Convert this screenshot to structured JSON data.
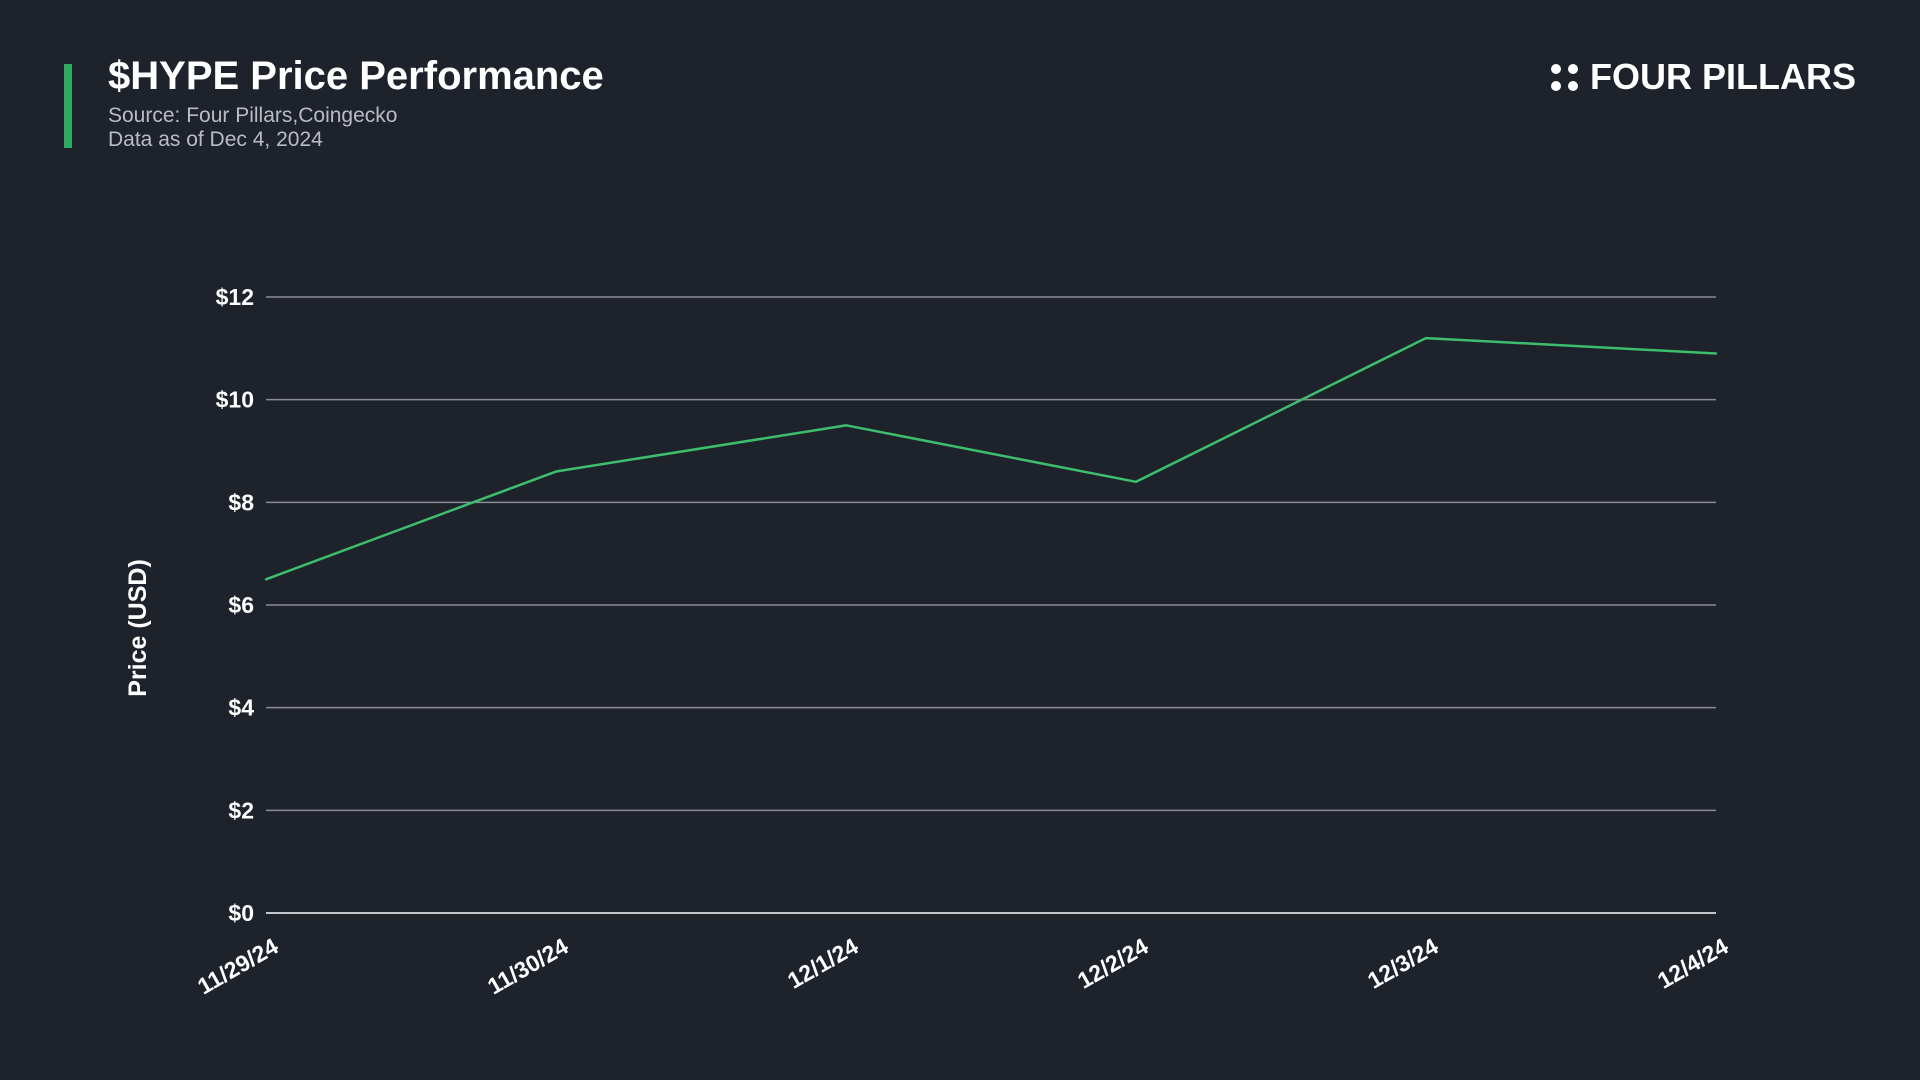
{
  "header": {
    "title": "$HYPE Price Performance",
    "source": "Source: Four Pillars,Coingecko",
    "as_of": "Data as of Dec 4, 2024"
  },
  "brand": {
    "name": "FOUR PILLARS",
    "icon": "four-dots-icon"
  },
  "colors": {
    "background": "#1e222b",
    "accent": "#2fa862",
    "line": "#3dbe6c",
    "grid": "#8a8d94",
    "subtitle": "#b9bcc3"
  },
  "chart_data": {
    "type": "line",
    "title": "$HYPE Price Performance",
    "xlabel": "",
    "ylabel": "Price (USD)",
    "categories": [
      "11/29/24",
      "11/30/24",
      "12/1/24",
      "12/2/24",
      "12/3/24",
      "12/4/24"
    ],
    "series": [
      {
        "values": [
          6.5,
          8.6,
          9.5,
          8.4,
          11.2,
          10.9
        ]
      }
    ],
    "ylim": [
      0,
      12
    ],
    "yticks": [
      0,
      2,
      4,
      6,
      8,
      10,
      12
    ],
    "ytick_labels": [
      "$0",
      "$2",
      "$4",
      "$6",
      "$8",
      "$10",
      "$12"
    ],
    "grid": true,
    "legend": "none"
  }
}
